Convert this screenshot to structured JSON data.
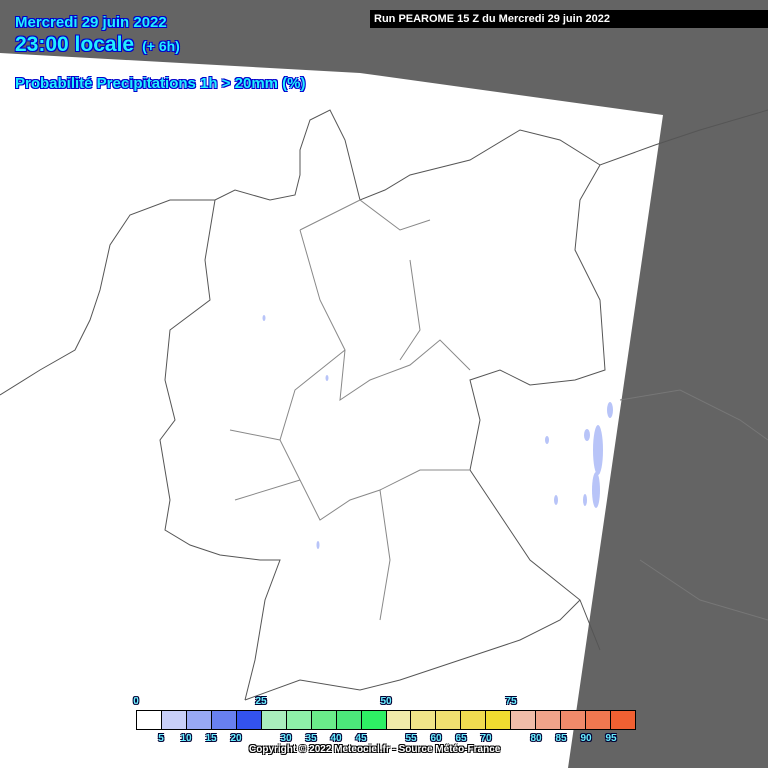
{
  "header": {
    "date": "Mercredi 29 juin 2022",
    "time": "23:00 locale",
    "offset": "(+ 6h)",
    "parameter": "Probabilité Precipitations 1h > 20mm (%)"
  },
  "run_banner": "Run PEAROME 15 Z du Mercredi 29 juin 2022",
  "legend": {
    "colors": [
      "#ffffff",
      "#c8cff8",
      "#98a8f4",
      "#6880f0",
      "#3353ee",
      "#a8eebc",
      "#8ef0a8",
      "#6aec8a",
      "#4ce87a",
      "#2ef064",
      "#f0eaaa",
      "#f0e488",
      "#f0e070",
      "#f0dc50",
      "#f0dc30",
      "#f0bca8",
      "#f0a48a",
      "#f08a6a",
      "#f07850",
      "#f06032"
    ],
    "top_labels": [
      "0",
      "25",
      "50",
      "75"
    ],
    "bottom_labels": [
      "5",
      "10",
      "15",
      "20",
      "30",
      "35",
      "40",
      "45",
      "55",
      "60",
      "65",
      "70",
      "80",
      "85",
      "90",
      "95"
    ]
  },
  "copyright": "Copyright © 2022 Meteociel.fr - Source Météo-France",
  "colors": {
    "outside_domain": "#646464",
    "domain": "#ffffff",
    "title_text": "#22eeff"
  }
}
